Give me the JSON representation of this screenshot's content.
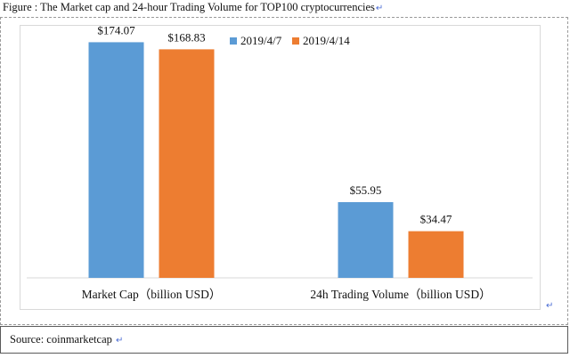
{
  "figure": {
    "title": "Figure : The Market cap and 24-hour Trading Volume for TOP100 cryptocurrencies",
    "return_mark": "↵"
  },
  "source": {
    "text": "Source: coinmarketcap",
    "return_mark": "↵"
  },
  "colors": {
    "series1": "#5b9bd5",
    "series2": "#ed7d31",
    "axis": "#d9d9d9"
  },
  "chart_data": {
    "type": "bar",
    "categories": [
      "Market Cap（billion USD）",
      "24h Trading Volume（billion USD）"
    ],
    "series": [
      {
        "name": "2019/4/7",
        "values": [
          174.07,
          55.95
        ],
        "labels": [
          "$174.07",
          "$55.95"
        ]
      },
      {
        "name": "2019/4/14",
        "values": [
          168.83,
          34.47
        ],
        "labels": [
          "$168.83",
          "$34.47"
        ]
      }
    ],
    "ylim": [
      0,
      200
    ],
    "grid": false,
    "legend_position": "top"
  }
}
